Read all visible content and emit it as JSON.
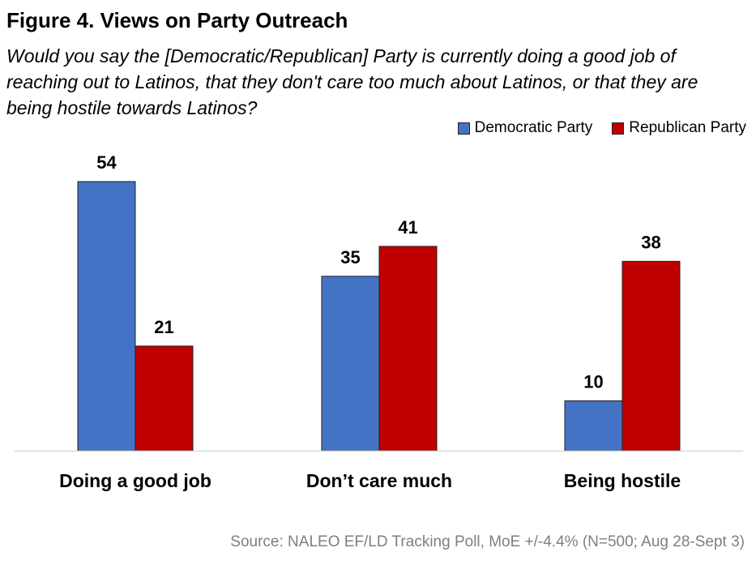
{
  "chart_data": {
    "type": "bar",
    "title": "Figure 4. Views on Party Outreach",
    "subtitle": "Would you say the [Democratic/Republican] Party is currently doing a good job of reaching out to Latinos, that they don't care too much about Latinos, or that they are being hostile towards Latinos?",
    "categories": [
      "Doing a good job",
      "Don’t care much",
      "Being hostile"
    ],
    "series": [
      {
        "name": "Democratic Party",
        "values": [
          54,
          35,
          10
        ],
        "color": "#4472C4"
      },
      {
        "name": "Republican Party",
        "values": [
          21,
          41,
          38
        ],
        "color": "#C00000"
      }
    ],
    "ylim": [
      0,
      54
    ],
    "grid": false,
    "legend_position": "top-right",
    "source": "Source: NALEO EF/LD Tracking Poll, MoE +/-4.4% (N=500; Aug 28-Sept 3)"
  }
}
